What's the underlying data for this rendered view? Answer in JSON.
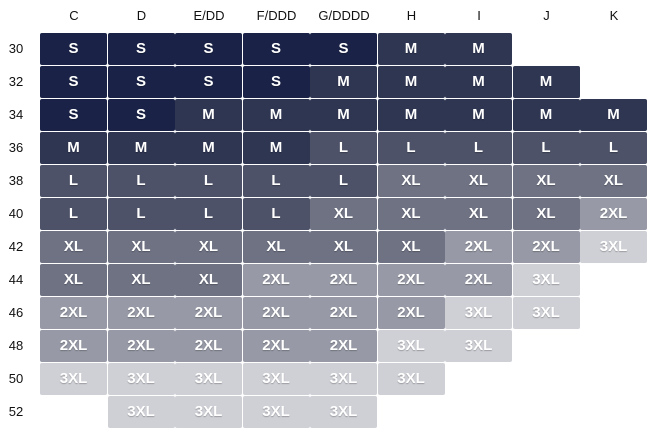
{
  "cup_sizes": [
    "C",
    "D",
    "E/DD",
    "F/DDD",
    "G/DDDD",
    "H",
    "I",
    "J",
    "K"
  ],
  "band_sizes": [
    "30",
    "32",
    "34",
    "36",
    "38",
    "40",
    "42",
    "44",
    "46",
    "48",
    "50",
    "52"
  ],
  "grid": [
    [
      "S",
      "S",
      "S",
      "S",
      "S",
      "M",
      "M",
      "",
      ""
    ],
    [
      "S",
      "S",
      "S",
      "S",
      "M",
      "M",
      "M",
      "M",
      ""
    ],
    [
      "S",
      "S",
      "M",
      "M",
      "M",
      "M",
      "M",
      "M",
      "M"
    ],
    [
      "M",
      "M",
      "M",
      "M",
      "L",
      "L",
      "L",
      "L",
      "L"
    ],
    [
      "L",
      "L",
      "L",
      "L",
      "L",
      "XL",
      "XL",
      "XL",
      "XL"
    ],
    [
      "L",
      "L",
      "L",
      "L",
      "XL",
      "XL",
      "XL",
      "XL",
      "2XL"
    ],
    [
      "XL",
      "XL",
      "XL",
      "XL",
      "XL",
      "XL",
      "2XL",
      "2XL",
      "3XL"
    ],
    [
      "XL",
      "XL",
      "XL",
      "2XL",
      "2XL",
      "2XL",
      "2XL",
      "3XL",
      ""
    ],
    [
      "2XL",
      "2XL",
      "2XL",
      "2XL",
      "2XL",
      "2XL",
      "3XL",
      "3XL",
      ""
    ],
    [
      "2XL",
      "2XL",
      "2XL",
      "2XL",
      "2XL",
      "3XL",
      "3XL",
      "",
      ""
    ],
    [
      "3XL",
      "3XL",
      "3XL",
      "3XL",
      "3XL",
      "3XL",
      "",
      "",
      ""
    ],
    [
      "",
      "3XL",
      "3XL",
      "3XL",
      "3XL",
      "",
      "",
      "",
      ""
    ]
  ],
  "colors": {
    "S": "#1a2347",
    "M": "#2f3652",
    "L": "#4d5268",
    "XL": "#6e7283",
    "2XL": "#979aa6",
    "3XL": "#cfd0d6"
  }
}
